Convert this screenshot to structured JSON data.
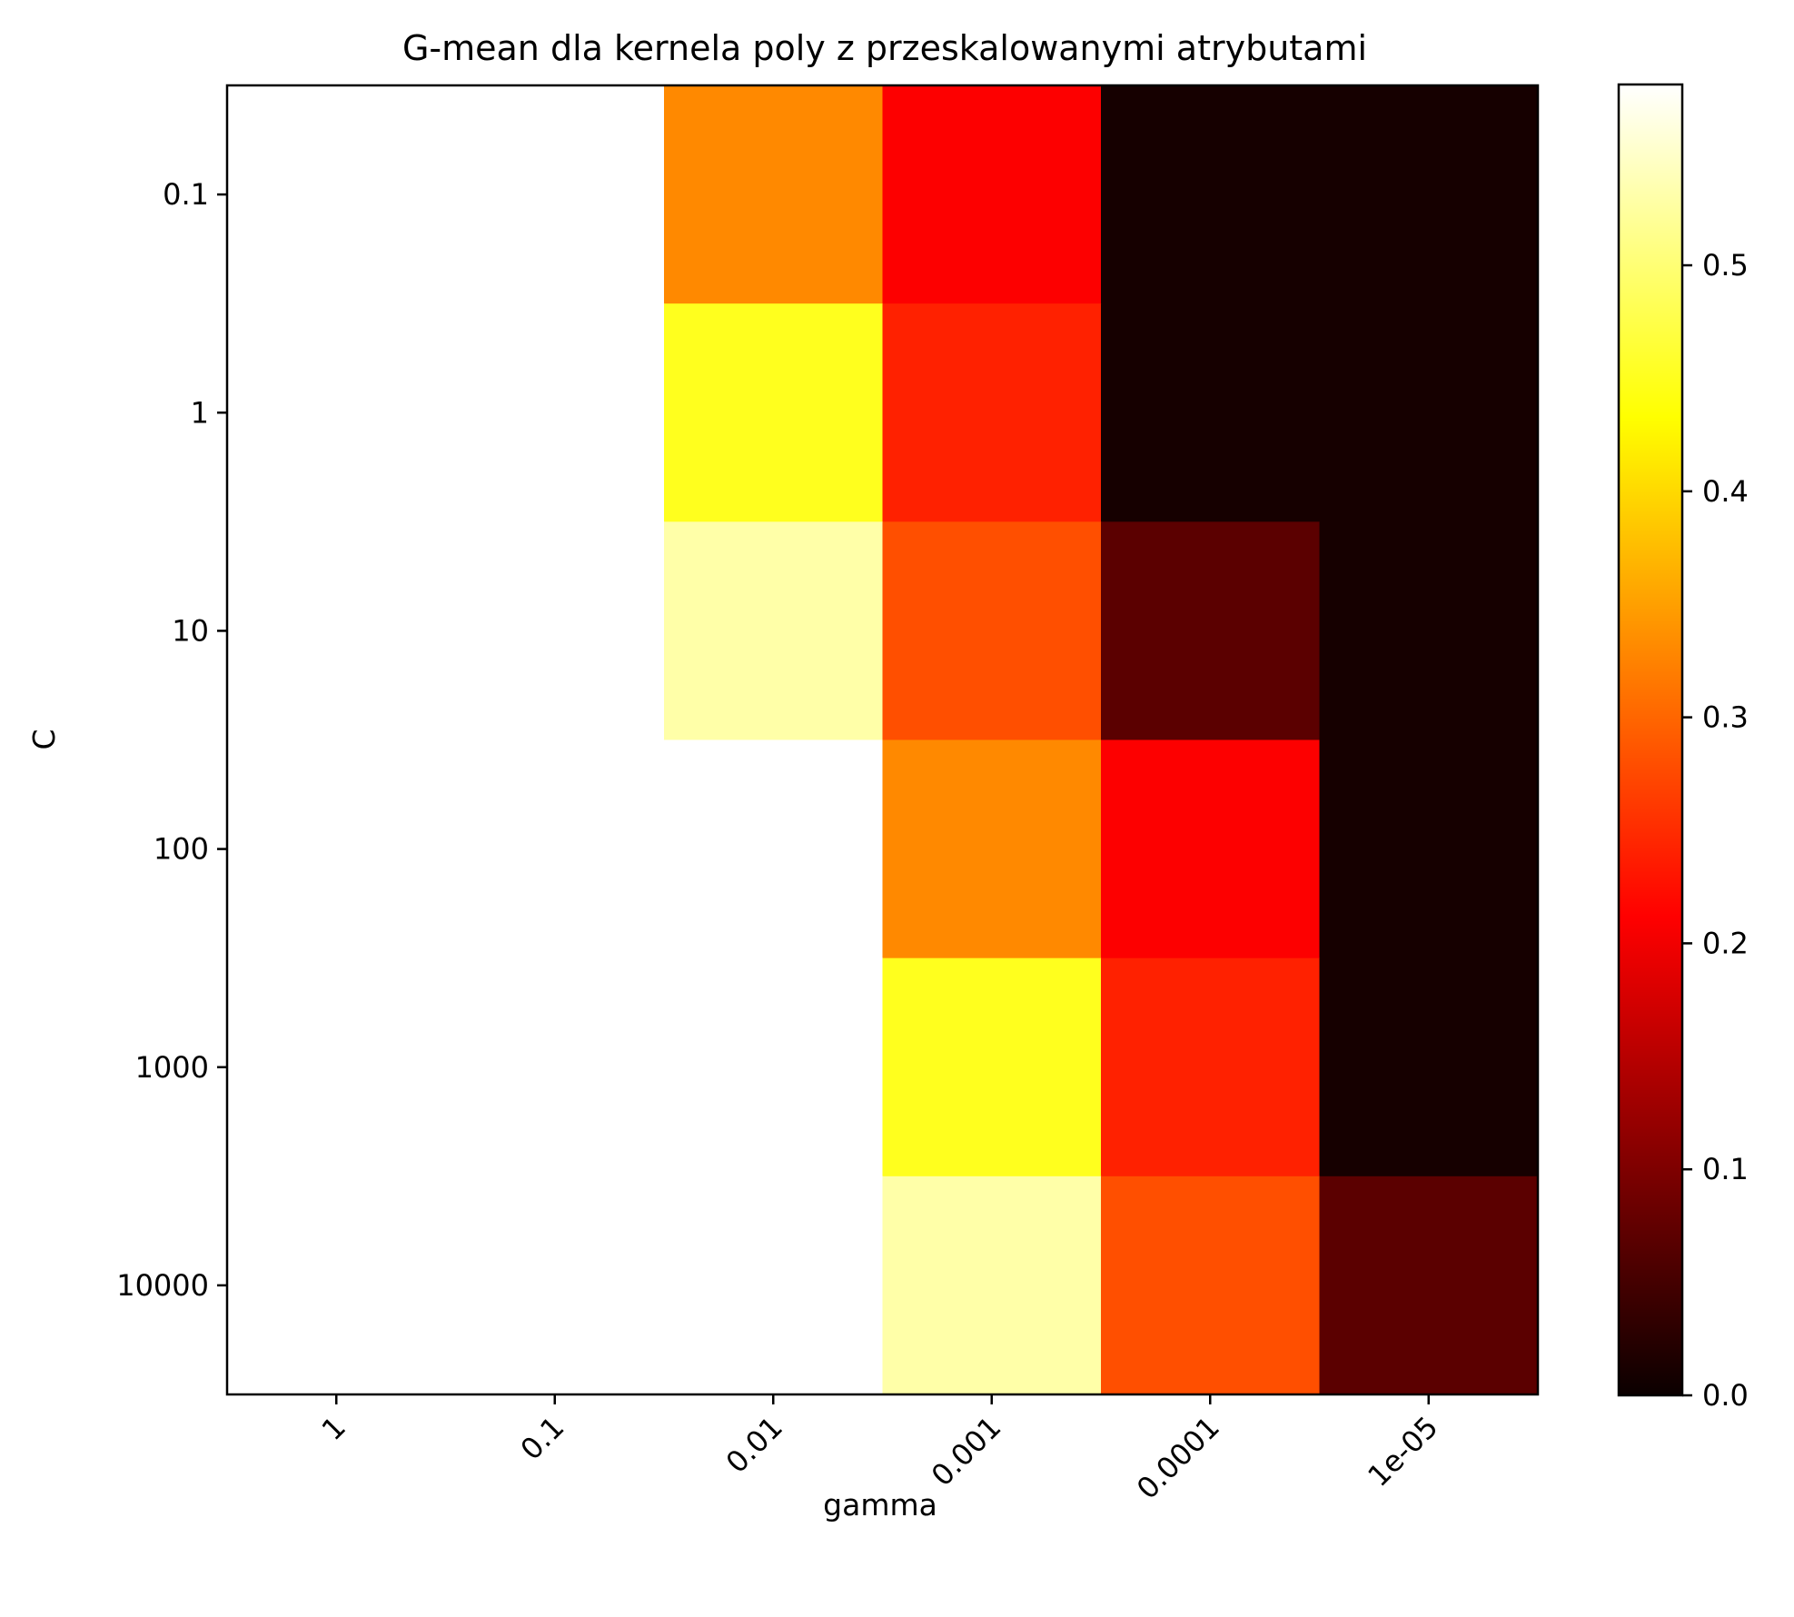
{
  "chart_data": {
    "type": "heatmap",
    "title": "G-mean dla kernela poly z przeskalowanymi atrybutami",
    "xlabel": "gamma",
    "ylabel": "C",
    "x_categories": [
      "1",
      "0.1",
      "0.01",
      "0.001",
      "0.0001",
      "1e-05"
    ],
    "y_categories": [
      "0.1",
      "1",
      "10",
      "100",
      "1000",
      "10000"
    ],
    "values": [
      [
        0.58,
        0.58,
        0.33,
        0.21,
        0.01,
        0.01
      ],
      [
        0.58,
        0.58,
        0.45,
        0.24,
        0.01,
        0.01
      ],
      [
        0.58,
        0.58,
        0.53,
        0.28,
        0.07,
        0.01
      ],
      [
        0.58,
        0.58,
        0.58,
        0.33,
        0.21,
        0.01
      ],
      [
        0.58,
        0.58,
        0.58,
        0.45,
        0.24,
        0.01
      ],
      [
        0.58,
        0.58,
        0.58,
        0.53,
        0.28,
        0.07
      ]
    ],
    "colormap": "hot",
    "colorbar": {
      "min": 0.0,
      "max": 0.58,
      "ticks": [
        0.0,
        0.1,
        0.2,
        0.3,
        0.4,
        0.5
      ],
      "tick_labels": [
        "0.0",
        "0.1",
        "0.2",
        "0.3",
        "0.4",
        "0.5"
      ]
    },
    "x_tick_rotation": 45,
    "grid": false,
    "legend": "colorbar-right"
  }
}
